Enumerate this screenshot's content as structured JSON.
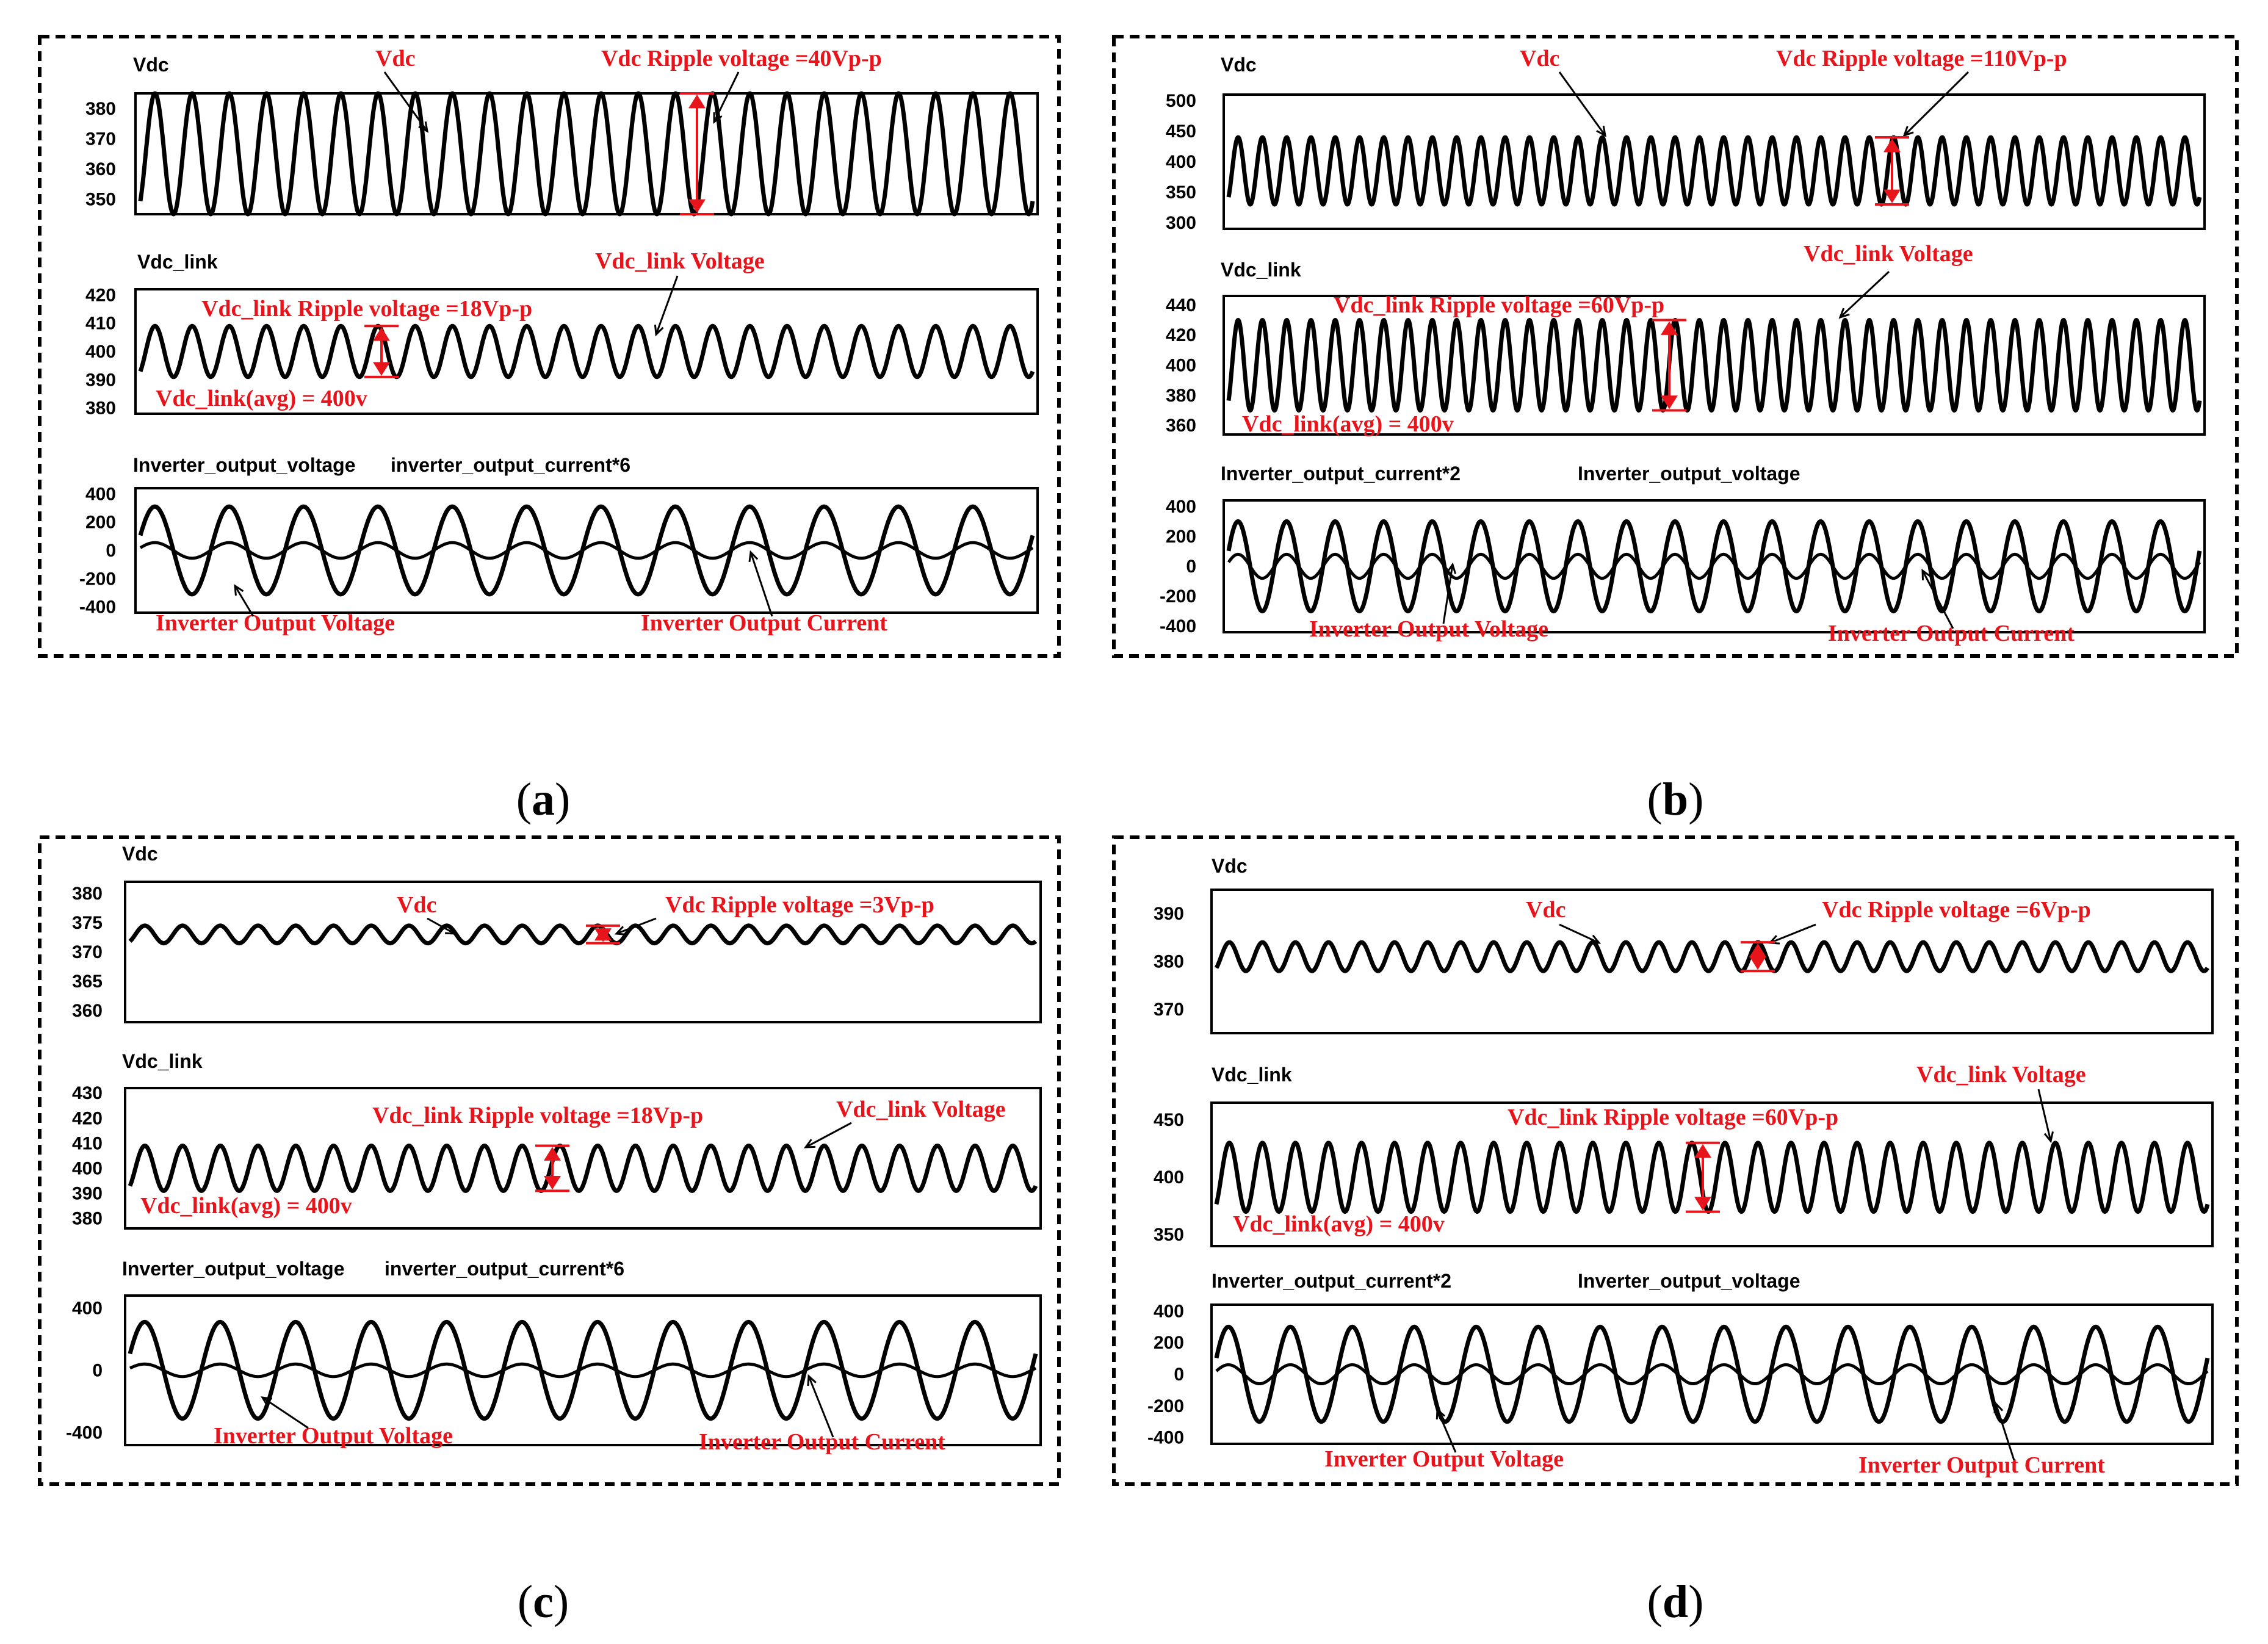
{
  "figure": {
    "subfigures": [
      {
        "label_open": "(",
        "label": "a",
        "label_close": ")",
        "panels": [
          {
            "title": "Vdc",
            "ticks": [
              "380",
              "370",
              "360",
              "350"
            ],
            "annotations": [
              "Vdc",
              "Vdc Ripple voltage =40Vp-p"
            ]
          },
          {
            "title": "Vdc_link",
            "ticks": [
              "420",
              "410",
              "400",
              "390",
              "380"
            ],
            "annotations": [
              "Vdc_link Voltage",
              "Vdc_link Ripple voltage =18Vp-p",
              "Vdc_link(avg) = 400v"
            ]
          },
          {
            "title": "Inverter_output_voltage",
            "title2": "inverter_output_current*6",
            "ticks": [
              "400",
              "200",
              "0",
              "-200",
              "-400"
            ],
            "annotations": [
              "Inverter Output Voltage",
              "Inverter Output Current"
            ]
          }
        ]
      },
      {
        "label_open": "(",
        "label": "b",
        "label_close": ")",
        "panels": [
          {
            "title": "Vdc",
            "ticks": [
              "500",
              "450",
              "400",
              "350",
              "300"
            ],
            "annotations": [
              "Vdc",
              "Vdc Ripple voltage =110Vp-p"
            ]
          },
          {
            "title": "Vdc_link",
            "ticks": [
              "440",
              "420",
              "400",
              "380",
              "360"
            ],
            "annotations": [
              "Vdc_link Voltage",
              "Vdc_link Ripple voltage =60Vp-p",
              "Vdc_link(avg) = 400v"
            ]
          },
          {
            "title": "Inverter_output_current*2",
            "title2": "Inverter_output_voltage",
            "ticks": [
              "400",
              "200",
              "0",
              "-200",
              "-400"
            ],
            "annotations": [
              "Inverter Output Voltage",
              "Inverter Output Current"
            ]
          }
        ]
      },
      {
        "label_open": "(",
        "label": "c",
        "label_close": ")",
        "panels": [
          {
            "title": "Vdc",
            "ticks": [
              "380",
              "375",
              "370",
              "365",
              "360"
            ],
            "annotations": [
              "Vdc",
              "Vdc Ripple voltage =3Vp-p"
            ]
          },
          {
            "title": "Vdc_link",
            "ticks": [
              "430",
              "420",
              "410",
              "400",
              "390",
              "380"
            ],
            "annotations": [
              "Vdc_link Voltage",
              "Vdc_link Ripple voltage =18Vp-p",
              "Vdc_link(avg) = 400v"
            ]
          },
          {
            "title": "Inverter_output_voltage",
            "title2": "inverter_output_current*6",
            "ticks": [
              "400",
              "0",
              "-400"
            ],
            "annotations": [
              "Inverter Output Voltage",
              "Inverter Output Current"
            ]
          }
        ]
      },
      {
        "label_open": "(",
        "label": "d",
        "label_close": ")",
        "panels": [
          {
            "title": "Vdc",
            "ticks": [
              "390",
              "380",
              "370"
            ],
            "annotations": [
              "Vdc",
              "Vdc Ripple voltage =6Vp-p"
            ]
          },
          {
            "title": "Vdc_link",
            "ticks": [
              "450",
              "400",
              "350"
            ],
            "annotations": [
              "Vdc_link Voltage",
              "Vdc_link Ripple voltage =60Vp-p",
              "Vdc_link(avg) = 400v"
            ]
          },
          {
            "title": "Inverter_output_current*2",
            "title2": "Inverter_output_voltage",
            "ticks": [
              "400",
              "200",
              "0",
              "-200",
              "-400"
            ],
            "annotations": [
              "Inverter Output Voltage",
              "Inverter Output Current"
            ]
          }
        ]
      }
    ]
  },
  "chart_data": [
    {
      "type": "line",
      "subfigure": "a",
      "title": "Vdc",
      "ylim": [
        345,
        385
      ],
      "y_ticks": [
        380,
        370,
        360,
        350
      ],
      "series": [
        {
          "name": "Vdc",
          "mean": 365,
          "ripple_pp": 40,
          "cycles": 24
        }
      ]
    },
    {
      "type": "line",
      "subfigure": "a",
      "title": "Vdc_link",
      "ylim": [
        378,
        422
      ],
      "y_ticks": [
        420,
        410,
        400,
        390,
        380
      ],
      "series": [
        {
          "name": "Vdc_link",
          "mean": 400,
          "ripple_pp": 18,
          "cycles": 24
        }
      ]
    },
    {
      "type": "line",
      "subfigure": "a",
      "title": "Inverter_output_voltage / inverter_output_current*6",
      "ylim": [
        -440,
        440
      ],
      "y_ticks": [
        400,
        200,
        0,
        -200,
        -400
      ],
      "series": [
        {
          "name": "Inverter_output_voltage",
          "amplitude": 310,
          "cycles": 12
        },
        {
          "name": "inverter_output_current*6",
          "amplitude": 55,
          "cycles": 12
        }
      ]
    },
    {
      "type": "line",
      "subfigure": "b",
      "title": "Vdc",
      "ylim": [
        290,
        510
      ],
      "y_ticks": [
        500,
        450,
        400,
        350,
        300
      ],
      "series": [
        {
          "name": "Vdc",
          "mean": 385,
          "ripple_pp": 110,
          "cycles": 40
        }
      ]
    },
    {
      "type": "line",
      "subfigure": "b",
      "title": "Vdc_link",
      "ylim": [
        354,
        446
      ],
      "y_ticks": [
        440,
        420,
        400,
        380,
        360
      ],
      "series": [
        {
          "name": "Vdc_link",
          "mean": 400,
          "ripple_pp": 60,
          "cycles": 40
        }
      ]
    },
    {
      "type": "line",
      "subfigure": "b",
      "title": "Inverter_output_current*2 / Inverter_output_voltage",
      "ylim": [
        -440,
        440
      ],
      "y_ticks": [
        400,
        200,
        0,
        -200,
        -400
      ],
      "series": [
        {
          "name": "Inverter_output_voltage",
          "amplitude": 300,
          "cycles": 20
        },
        {
          "name": "Inverter_output_current*2",
          "amplitude": 80,
          "cycles": 20
        }
      ]
    },
    {
      "type": "line",
      "subfigure": "c",
      "title": "Vdc",
      "ylim": [
        358,
        382
      ],
      "y_ticks": [
        380,
        375,
        370,
        365,
        360
      ],
      "series": [
        {
          "name": "Vdc",
          "mean": 373,
          "ripple_pp": 3,
          "cycles": 24
        }
      ]
    },
    {
      "type": "line",
      "subfigure": "c",
      "title": "Vdc_link",
      "ylim": [
        376,
        432
      ],
      "y_ticks": [
        430,
        420,
        410,
        400,
        390,
        380
      ],
      "series": [
        {
          "name": "Vdc_link",
          "mean": 400,
          "ripple_pp": 18,
          "cycles": 24
        }
      ]
    },
    {
      "type": "line",
      "subfigure": "c",
      "title": "Inverter_output_voltage / inverter_output_current*6",
      "ylim": [
        -480,
        480
      ],
      "y_ticks": [
        400,
        0,
        -400
      ],
      "series": [
        {
          "name": "Inverter_output_voltage",
          "amplitude": 310,
          "cycles": 12
        },
        {
          "name": "inverter_output_current*6",
          "amplitude": 40,
          "cycles": 12
        }
      ]
    },
    {
      "type": "line",
      "subfigure": "d",
      "title": "Vdc",
      "ylim": [
        365,
        395
      ],
      "y_ticks": [
        390,
        380,
        370
      ],
      "series": [
        {
          "name": "Vdc",
          "mean": 381,
          "ripple_pp": 6,
          "cycles": 30
        }
      ]
    },
    {
      "type": "line",
      "subfigure": "d",
      "title": "Vdc_link",
      "ylim": [
        340,
        465
      ],
      "y_ticks": [
        450,
        400,
        350
      ],
      "series": [
        {
          "name": "Vdc_link",
          "mean": 400,
          "ripple_pp": 60,
          "cycles": 30
        }
      ]
    },
    {
      "type": "line",
      "subfigure": "d",
      "title": "Inverter_output_current*2 / Inverter_output_voltage",
      "ylim": [
        -440,
        440
      ],
      "y_ticks": [
        400,
        200,
        0,
        -200,
        -400
      ],
      "series": [
        {
          "name": "Inverter_output_voltage",
          "amplitude": 300,
          "cycles": 16
        },
        {
          "name": "Inverter_output_current*2",
          "amplitude": 60,
          "cycles": 16
        }
      ]
    }
  ]
}
